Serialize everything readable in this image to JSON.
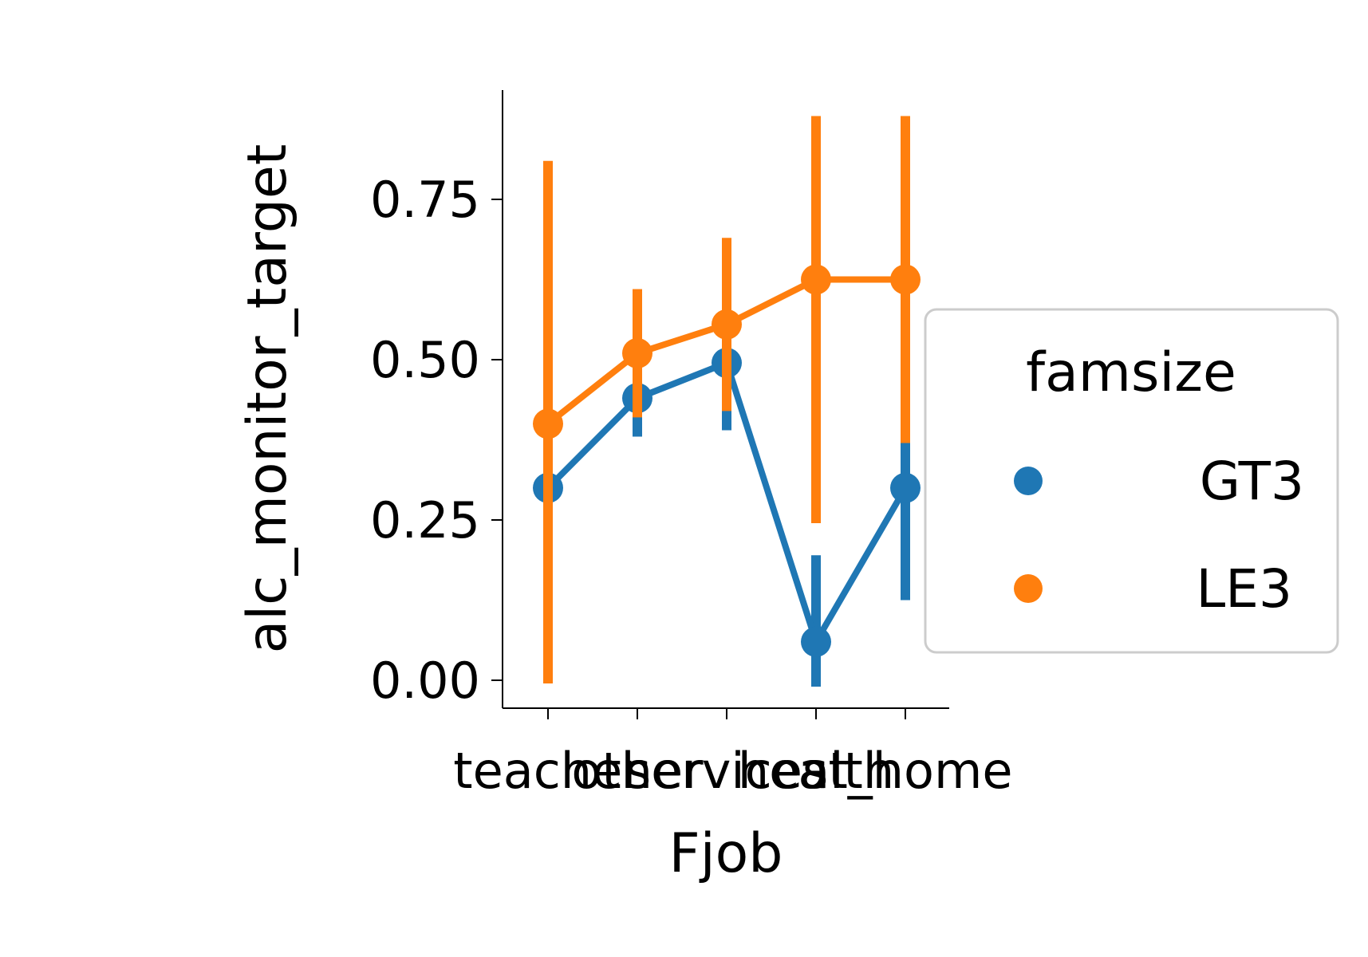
{
  "chart_data": {
    "type": "line",
    "xlabel": "Fjob",
    "ylabel": "alc_monitor_target",
    "categories": [
      "teacher",
      "other",
      "services",
      "health",
      "at_home"
    ],
    "ylim": [
      -0.04,
      0.92
    ],
    "yticks": [
      0.0,
      0.25,
      0.5,
      0.75
    ],
    "ytick_labels": [
      "0.00",
      "0.25",
      "0.50",
      "0.75"
    ],
    "grid": false,
    "legend": {
      "title": "famsize",
      "placement": "center-right, outside plot",
      "entries": [
        "GT3",
        "LE3"
      ]
    },
    "series": [
      {
        "name": "GT3",
        "color": "#1f77b4",
        "values": [
          0.3,
          0.44,
          0.495,
          0.06,
          0.3
        ],
        "ci_low": [
          0.17,
          0.38,
          0.39,
          -0.01,
          0.125
        ],
        "ci_high": [
          0.42,
          0.5,
          0.6,
          0.195,
          0.37
        ]
      },
      {
        "name": "LE3",
        "color": "#ff7f0e",
        "values": [
          0.4,
          0.51,
          0.555,
          0.625,
          0.625
        ],
        "ci_low": [
          -0.005,
          0.41,
          0.42,
          0.245,
          0.37
        ],
        "ci_high": [
          0.81,
          0.61,
          0.69,
          0.88,
          0.88
        ]
      }
    ]
  }
}
